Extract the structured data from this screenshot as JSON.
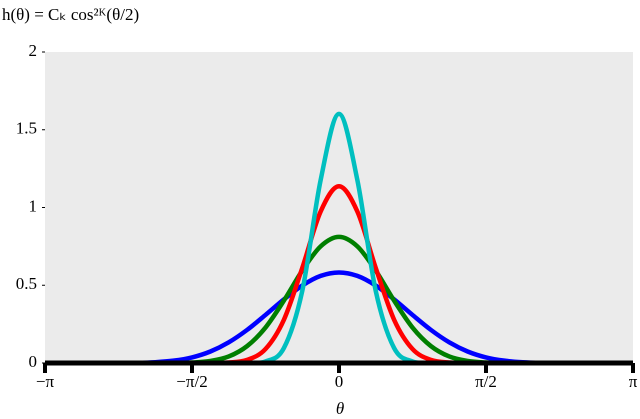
{
  "chart_data": {
    "type": "line",
    "title": "h(θ) = Cₖ cos²ᴷ(θ/2)",
    "x_label": "θ",
    "x": [
      -3.1416,
      -2.9452,
      -2.7489,
      -2.5525,
      -2.3562,
      -2.1598,
      -1.9635,
      -1.7671,
      -1.5708,
      -1.3744,
      -1.1781,
      -0.9817,
      -0.7854,
      -0.589,
      -0.3927,
      -0.1963,
      0,
      0.1963,
      0.3927,
      0.589,
      0.7854,
      0.9817,
      1.1781,
      1.3744,
      1.5708,
      1.7671,
      1.9635,
      2.1598,
      2.3562,
      2.5525,
      2.7489,
      2.9452,
      3.1416
    ],
    "series": [
      {
        "color": "#0000ff",
        "values": [
          0,
          0,
          0,
          0,
          0,
          0.001,
          0.005,
          0.015,
          0.036,
          0.074,
          0.133,
          0.213,
          0.309,
          0.409,
          0.498,
          0.56,
          0.582,
          0.56,
          0.498,
          0.409,
          0.309,
          0.213,
          0.133,
          0.074,
          0.036,
          0.015,
          0.005,
          0.001,
          0,
          0,
          0,
          0,
          0
        ]
      },
      {
        "color": "#007f00",
        "values": [
          0,
          0,
          0,
          0,
          0,
          0,
          0,
          0.001,
          0.003,
          0.013,
          0.042,
          0.109,
          0.228,
          0.401,
          0.594,
          0.75,
          0.811,
          0.75,
          0.594,
          0.401,
          0.228,
          0.109,
          0.042,
          0.013,
          0.003,
          0.001,
          0,
          0,
          0,
          0,
          0,
          0,
          0
        ]
      },
      {
        "color": "#ff0000",
        "values": [
          0,
          0,
          0,
          0,
          0,
          0,
          0,
          0,
          0,
          0,
          0.003,
          0.02,
          0.09,
          0.278,
          0.611,
          0.974,
          1.137,
          0.974,
          0.611,
          0.278,
          0.09,
          0.02,
          0.003,
          0,
          0,
          0,
          0,
          0,
          0,
          0,
          0,
          0,
          0
        ]
      },
      {
        "color": "#00bfbf",
        "values": [
          0,
          0,
          0,
          0,
          0,
          0,
          0,
          0,
          0,
          0,
          0,
          0.001,
          0.01,
          0.096,
          0.463,
          1.176,
          1.602,
          1.176,
          0.463,
          0.096,
          0.01,
          0.001,
          0,
          0,
          0,
          0,
          0,
          0,
          0,
          0,
          0,
          0,
          0
        ]
      }
    ],
    "xlim": [
      -3.1416,
      3.1416
    ],
    "xticks": [
      {
        "value": -3.1416,
        "label": "−π"
      },
      {
        "value": -1.5708,
        "label": "−π/2"
      },
      0,
      {
        "value": 1.5708,
        "label": "π/2"
      },
      {
        "value": 3.1416,
        "label": "π"
      }
    ],
    "ylim": [
      0,
      2
    ],
    "yticks": [
      0,
      0.5,
      1,
      1.5,
      2
    ],
    "background": "#ebebeb"
  }
}
